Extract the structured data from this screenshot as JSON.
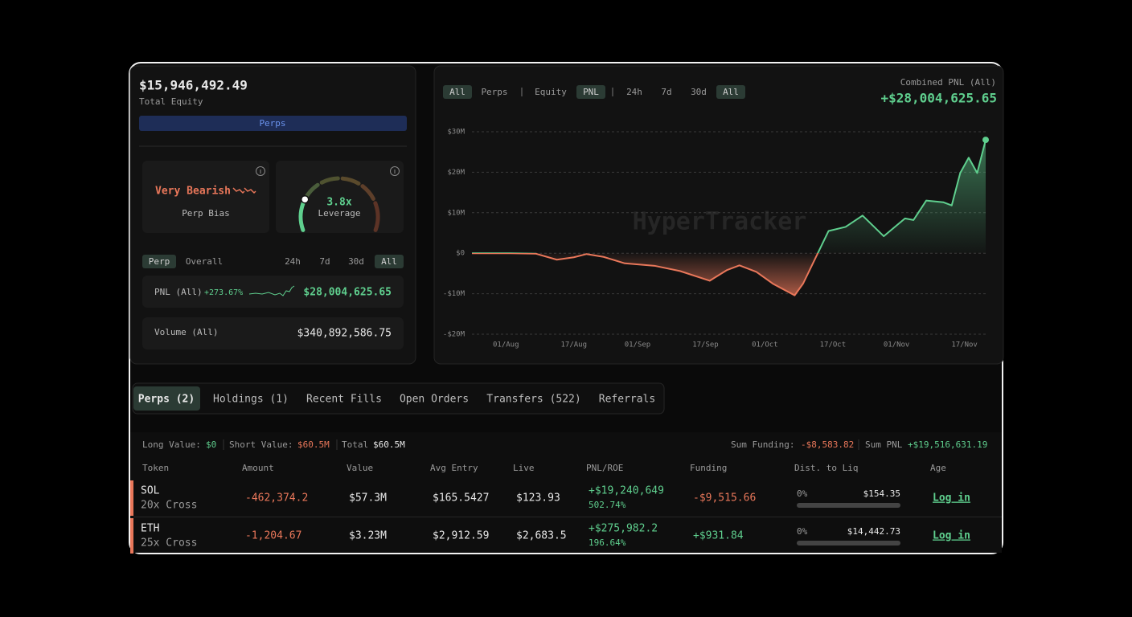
{
  "equity_panel": {
    "total_equity": "$15,946,492.49",
    "total_equity_label": "Total Equity",
    "market_tab": "Perps",
    "bias": {
      "value": "Very Bearish",
      "caption": "Perp Bias"
    },
    "leverage": {
      "value": "3.8x",
      "caption": "Leverage"
    },
    "scope_tabs": [
      "Perp",
      "Overall"
    ],
    "period_tabs": [
      "24h",
      "7d",
      "30d",
      "All"
    ],
    "pnl": {
      "label": "PNL (All)",
      "change": "+273.67%",
      "value": "$28,004,625.65"
    },
    "volume": {
      "label": "Volume (All)",
      "value": "$340,892,586.75"
    }
  },
  "chart_panel": {
    "filters": [
      "All",
      "Perps",
      "Equity",
      "PNL",
      "24h",
      "7d",
      "30d",
      "All"
    ],
    "combined_label": "Combined PNL (All)",
    "combined_value": "+$28,004,625.65",
    "watermark": "HyperTracker"
  },
  "chart_data": {
    "type": "area",
    "x": [
      "24/Jul",
      "01/Aug",
      "08/Aug",
      "13/Aug",
      "17/Aug",
      "20/Aug",
      "24/Aug",
      "29/Aug",
      "05/Sep",
      "11/Sep",
      "18/Sep",
      "22/Sep",
      "25/Sep",
      "29/Sep",
      "03/Oct",
      "08/Oct",
      "10/Oct",
      "13/Oct",
      "16/Oct",
      "20/Oct",
      "24/Oct",
      "29/Oct",
      "03/Nov",
      "05/Nov",
      "08/Nov",
      "12/Nov",
      "14/Nov",
      "16/Nov",
      "18/Nov",
      "20/Nov",
      "22/Nov"
    ],
    "values": [
      0,
      0,
      -0.1,
      -1.6,
      -1.0,
      -0.2,
      -0.9,
      -2.5,
      -3.1,
      -4.4,
      -6.8,
      -4.2,
      -3.0,
      -4.6,
      -7.6,
      -10.4,
      -7.5,
      -1,
      5.5,
      6.5,
      9.3,
      4.2,
      8.6,
      8.2,
      13,
      12.6,
      11.8,
      19.8,
      23.6,
      19.8,
      28
    ],
    "ylim": [
      -20,
      30
    ],
    "yticks": [
      {
        "value": 30,
        "label": "$30M"
      },
      {
        "value": 20,
        "label": "$20M"
      },
      {
        "value": 10,
        "label": "$10M"
      },
      {
        "value": 0,
        "label": "$0"
      },
      {
        "value": -10,
        "label": "-$10M"
      },
      {
        "value": -20,
        "label": "-$20M"
      }
    ],
    "xticks": [
      "01/Aug",
      "17/Aug",
      "01/Sep",
      "17/Sep",
      "01/Oct",
      "17/Oct",
      "01/Nov",
      "17/Nov"
    ],
    "grid": true,
    "color": "#5fcf8e",
    "negative_color": "#e9775a"
  },
  "positions": {
    "tabs": [
      "Perps (2)",
      "Holdings (1)",
      "Recent Fills",
      "Open Orders",
      "Transfers (522)",
      "Referrals"
    ],
    "summary": {
      "long_label": "Long Value:",
      "long_value": "$0",
      "short_label": "Short Value:",
      "short_value": "$60.5M",
      "total_label": "Total",
      "total_value": "$60.5M",
      "funding_label": "Sum Funding:",
      "funding_value": "-$8,583.82",
      "pnl_label": "Sum PNL",
      "pnl_value": "+$19,516,631.19"
    },
    "columns": [
      "Token",
      "Amount",
      "Value",
      "Avg Entry",
      "Live",
      "PNL/ROE",
      "Funding",
      "Dist. to Liq",
      "Age"
    ],
    "rows": [
      {
        "token": "SOL",
        "mode": "20x Cross",
        "amount": "-462,374.2",
        "value": "$57.3M",
        "avg_entry": "$165.5427",
        "live": "$123.93",
        "pnl": "+$19,240,649",
        "roe": "502.74%",
        "funding": "-$9,515.66",
        "liq_dist": "0%",
        "liq_price": "$154.35",
        "age": "Log in"
      },
      {
        "token": "ETH",
        "mode": "25x Cross",
        "amount": "-1,204.67",
        "value": "$3.23M",
        "avg_entry": "$2,912.59",
        "live": "$2,683.5",
        "pnl": "+$275,982.2",
        "roe": "196.64%",
        "funding": "+$931.84",
        "liq_dist": "0%",
        "liq_price": "$14,442.73",
        "age": "Log in"
      }
    ]
  }
}
